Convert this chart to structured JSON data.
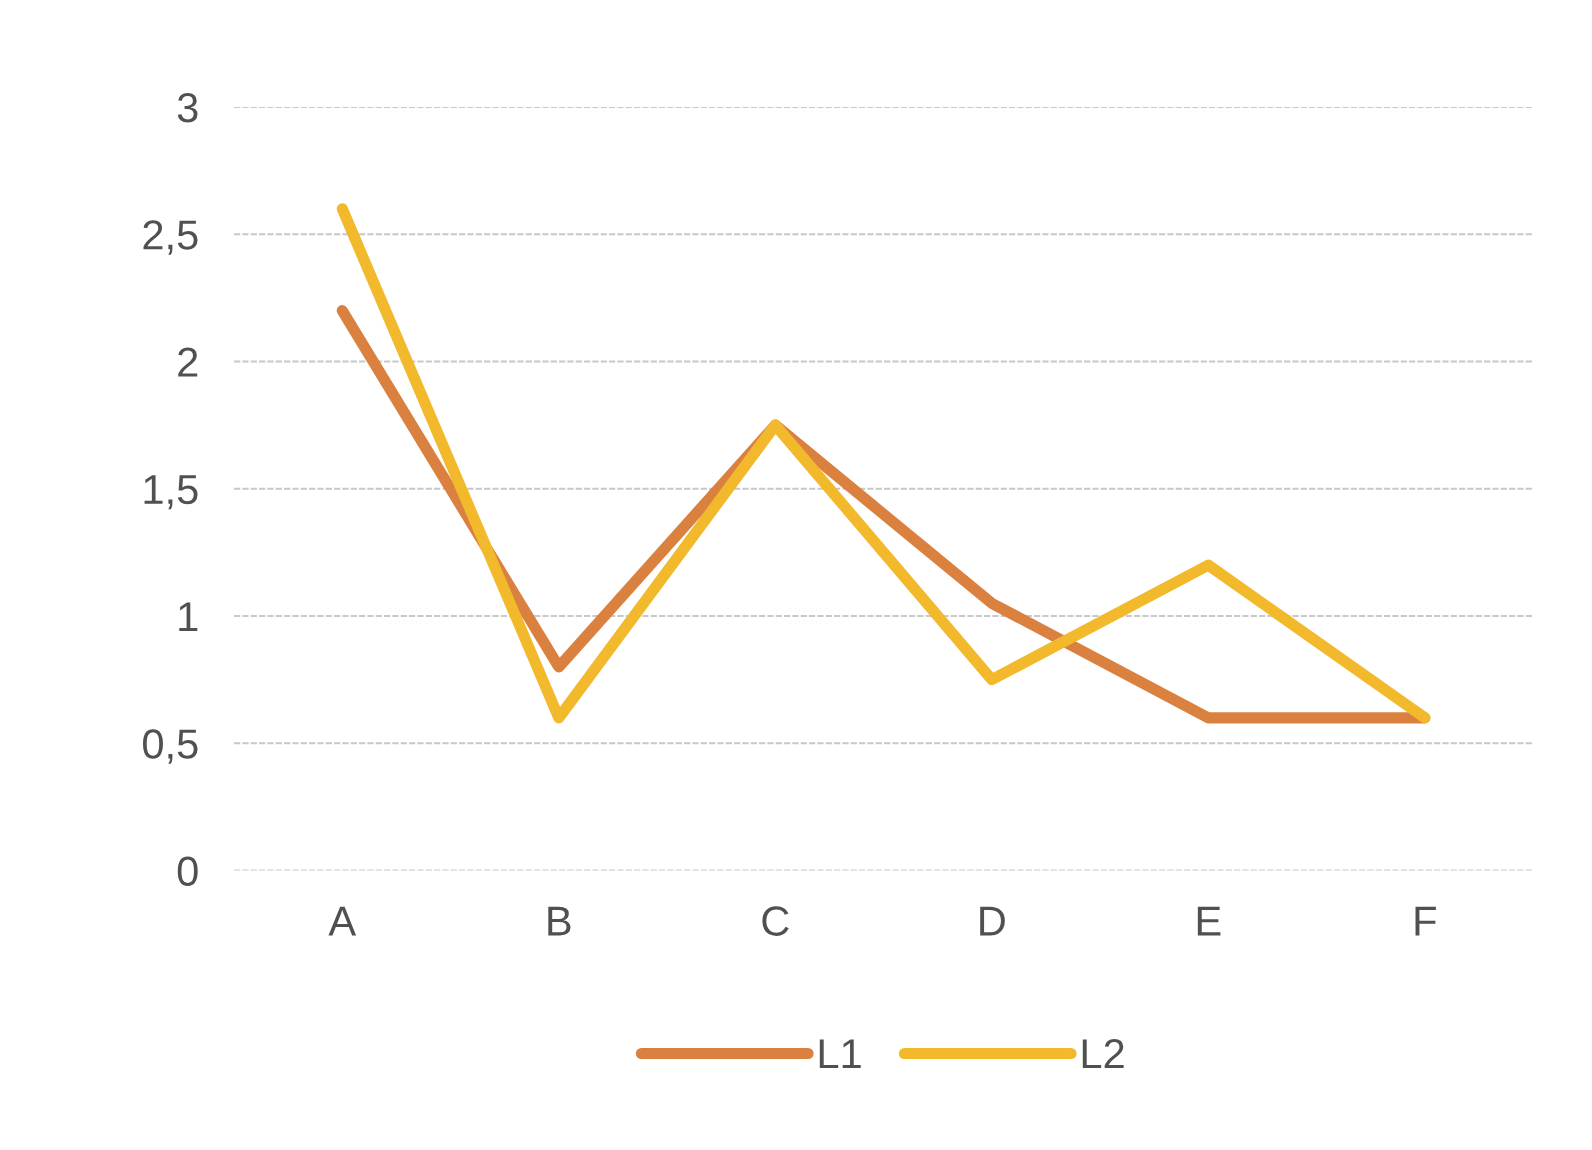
{
  "chart_data": {
    "type": "line",
    "categories": [
      "A",
      "B",
      "C",
      "D",
      "E",
      "F"
    ],
    "series": [
      {
        "name": "L1",
        "color": "#db8140",
        "values": [
          2.2,
          0.8,
          1.75,
          1.05,
          0.6,
          0.6
        ]
      },
      {
        "name": "L2",
        "color": "#f2b92c",
        "values": [
          2.6,
          0.6,
          1.75,
          0.75,
          1.2,
          0.6
        ]
      }
    ],
    "ylim": [
      0,
      3
    ],
    "yticks": [
      0,
      {
        "value": 0.5,
        "label": "0,5"
      },
      1,
      {
        "value": 1.5,
        "label": "1,5"
      },
      2,
      {
        "value": 2.5,
        "label": "2,5"
      },
      3
    ],
    "grid": "y",
    "legend": "bottom",
    "marker": "none",
    "line_style": "solid"
  }
}
